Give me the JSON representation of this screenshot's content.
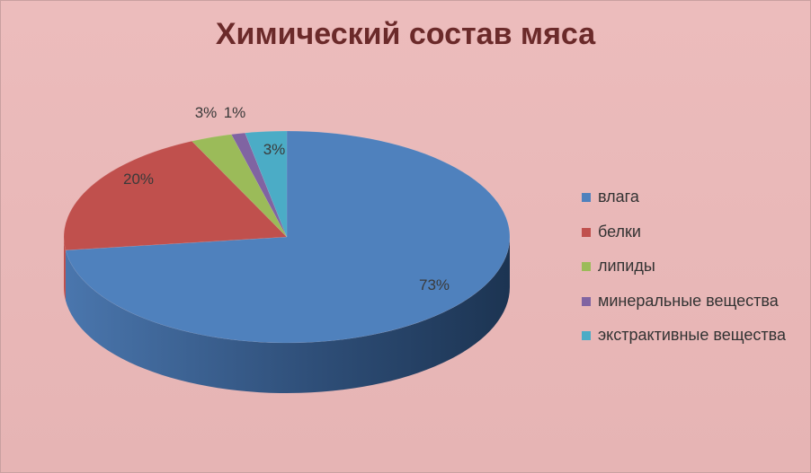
{
  "chart_data": {
    "type": "pie",
    "title": "Химический состав мяса",
    "categories": [
      "влага",
      "белки",
      "липиды",
      "минеральные вещества",
      "экстрактивные вещества"
    ],
    "values": [
      73,
      20,
      3,
      1,
      3
    ],
    "labels": [
      "73%",
      "20%",
      "3%",
      "1%",
      "3%"
    ],
    "colors": [
      "#4f81bd",
      "#c0504d",
      "#9bbb59",
      "#8064a2",
      "#4bacc6"
    ],
    "legend_position": "right",
    "style": "3d"
  }
}
